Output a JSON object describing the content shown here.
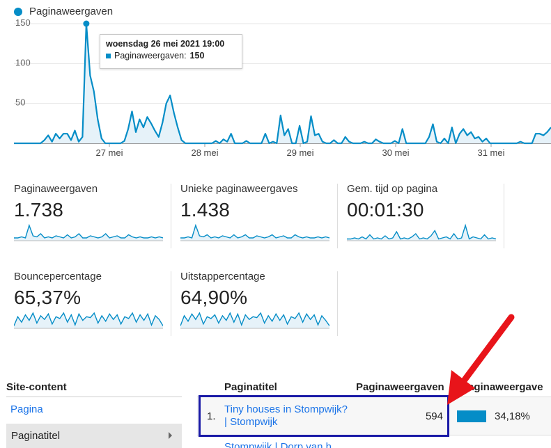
{
  "legend": {
    "label": "Paginaweergaven",
    "color": "#058dc7"
  },
  "chart_data": {
    "type": "area",
    "series_name": "Paginaweergaven",
    "y_ticks": [
      "150",
      "100",
      "50"
    ],
    "ylim": [
      0,
      160
    ],
    "x_tick_labels": [
      "27 mei",
      "28 mei",
      "29 mei",
      "30 mei",
      "31 mei"
    ],
    "grid": true,
    "values": [
      0,
      0,
      0,
      0,
      0,
      0,
      0,
      0,
      4,
      10,
      2,
      12,
      6,
      12,
      12,
      4,
      16,
      2,
      8,
      150,
      85,
      65,
      30,
      6,
      0,
      0,
      0,
      0,
      0,
      3,
      18,
      40,
      14,
      30,
      20,
      33,
      25,
      16,
      8,
      26,
      50,
      60,
      38,
      20,
      4,
      0,
      0,
      0,
      0,
      0,
      0,
      0,
      0,
      3,
      0,
      5,
      2,
      12,
      0,
      0,
      0,
      3,
      0,
      0,
      0,
      0,
      12,
      0,
      2,
      0,
      35,
      10,
      18,
      0,
      0,
      22,
      0,
      2,
      34,
      10,
      12,
      2,
      0,
      0,
      4,
      0,
      0,
      8,
      2,
      0,
      0,
      0,
      2,
      0,
      0,
      5,
      2,
      0,
      0,
      0,
      3,
      0,
      18,
      0,
      0,
      0,
      0,
      0,
      0,
      8,
      24,
      2,
      0,
      6,
      0,
      20,
      0,
      12,
      18,
      10,
      14,
      6,
      8,
      2,
      6,
      0,
      0,
      0,
      0,
      0,
      0,
      0,
      0,
      2,
      0,
      0,
      0,
      12,
      12,
      10,
      14,
      20
    ],
    "tooltip": {
      "date": "woensdag 26 mei 2021 19:00",
      "label": "Paginaweergaven:",
      "value": "150"
    }
  },
  "metrics": [
    {
      "label": "Paginaweergaven",
      "value": "1.738",
      "spark": [
        2,
        2,
        3,
        2,
        14,
        4,
        3,
        6,
        2,
        3,
        2,
        4,
        3,
        2,
        5,
        2,
        3,
        6,
        2,
        2,
        4,
        3,
        2,
        3,
        6,
        2,
        3,
        4,
        2,
        2,
        5,
        3,
        2,
        3,
        2,
        2,
        3,
        2,
        3,
        2
      ]
    },
    {
      "label": "Unieke paginaweergaves",
      "value": "1.438",
      "spark": [
        2,
        2,
        3,
        2,
        14,
        4,
        3,
        5,
        2,
        3,
        2,
        4,
        3,
        2,
        5,
        2,
        3,
        5,
        2,
        2,
        4,
        3,
        2,
        3,
        5,
        2,
        3,
        4,
        2,
        2,
        5,
        3,
        2,
        3,
        2,
        2,
        3,
        2,
        3,
        2
      ]
    },
    {
      "label": "Gem. tijd op pagina",
      "value": "00:01:30",
      "spark": [
        1,
        1,
        2,
        1,
        3,
        1,
        5,
        1,
        2,
        1,
        4,
        1,
        2,
        8,
        1,
        2,
        1,
        3,
        6,
        1,
        2,
        1,
        4,
        9,
        1,
        2,
        3,
        1,
        6,
        1,
        2,
        14,
        1,
        3,
        2,
        1,
        5,
        1,
        2,
        1
      ]
    },
    {
      "label": "Bouncepercentage",
      "value": "65,37%",
      "spark": [
        2,
        12,
        6,
        14,
        8,
        16,
        5,
        13,
        9,
        15,
        4,
        12,
        10,
        16,
        6,
        14,
        3,
        15,
        8,
        12,
        11,
        16,
        5,
        13,
        7,
        15,
        9,
        14,
        4,
        12,
        10,
        16,
        6,
        14,
        8,
        15,
        3,
        13,
        9,
        2
      ]
    },
    {
      "label": "Uitstappercentage",
      "value": "64,90%",
      "spark": [
        2,
        13,
        7,
        15,
        9,
        16,
        4,
        12,
        10,
        14,
        5,
        13,
        8,
        16,
        6,
        15,
        3,
        14,
        9,
        12,
        11,
        16,
        5,
        13,
        7,
        15,
        8,
        14,
        4,
        12,
        10,
        16,
        6,
        15,
        9,
        14,
        3,
        13,
        8,
        2
      ]
    }
  ],
  "site_content": {
    "heading": "Site-content",
    "link": "Pagina",
    "selected": "Paginatitel"
  },
  "table": {
    "col_title": "Paginatitel",
    "col_views": "Paginaweergaven",
    "col_views_pct": "Paginaweergave",
    "rows": [
      {
        "num": "1.",
        "title": "Tiny houses in Stompwijk? | Stompwijk",
        "views": "594",
        "pct": "34,18%",
        "share": 0.3418
      }
    ],
    "row2_title": "Stompwijk | Dorp van h"
  },
  "accent": "#058dc7"
}
